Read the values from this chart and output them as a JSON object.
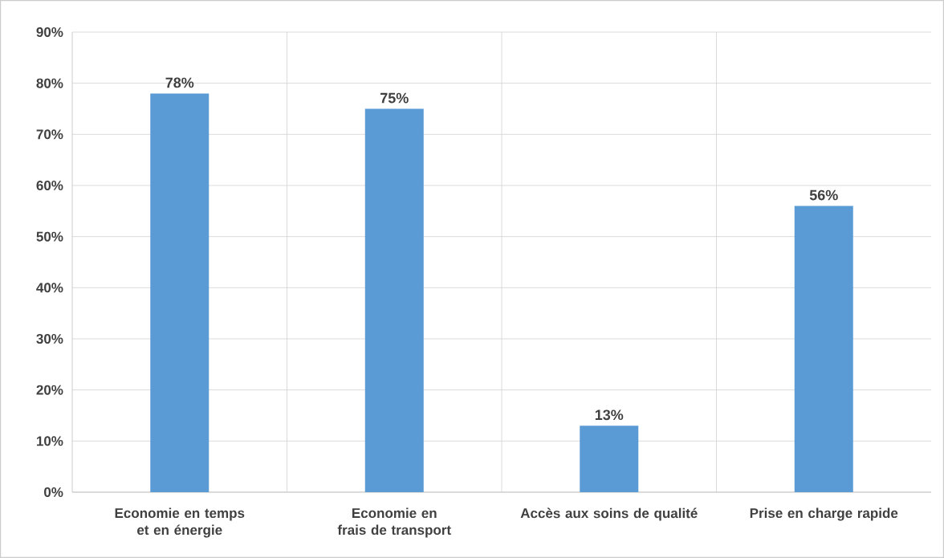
{
  "chart_data": {
    "type": "bar",
    "categories": [
      "Economie en temps et en énergie",
      "Economie en frais de transport",
      "Accès aux soins de qualité",
      "Prise en charge rapide"
    ],
    "values": [
      78,
      75,
      13,
      56
    ],
    "value_labels": [
      "78%",
      "75%",
      "13%",
      "56%"
    ],
    "color": "#5b9bd5",
    "ylim": [
      0,
      90
    ],
    "yticks": [
      {
        "value": 0,
        "label": "0%"
      },
      {
        "value": 10,
        "label": "10%"
      },
      {
        "value": 20,
        "label": "20%"
      },
      {
        "value": 30,
        "label": "30%"
      },
      {
        "value": 40,
        "label": "40%"
      },
      {
        "value": 50,
        "label": "50%"
      },
      {
        "value": 60,
        "label": "60%"
      },
      {
        "value": 70,
        "label": "70%"
      },
      {
        "value": 80,
        "label": "80%"
      },
      {
        "value": 90,
        "label": "90%"
      }
    ],
    "grid": true
  }
}
